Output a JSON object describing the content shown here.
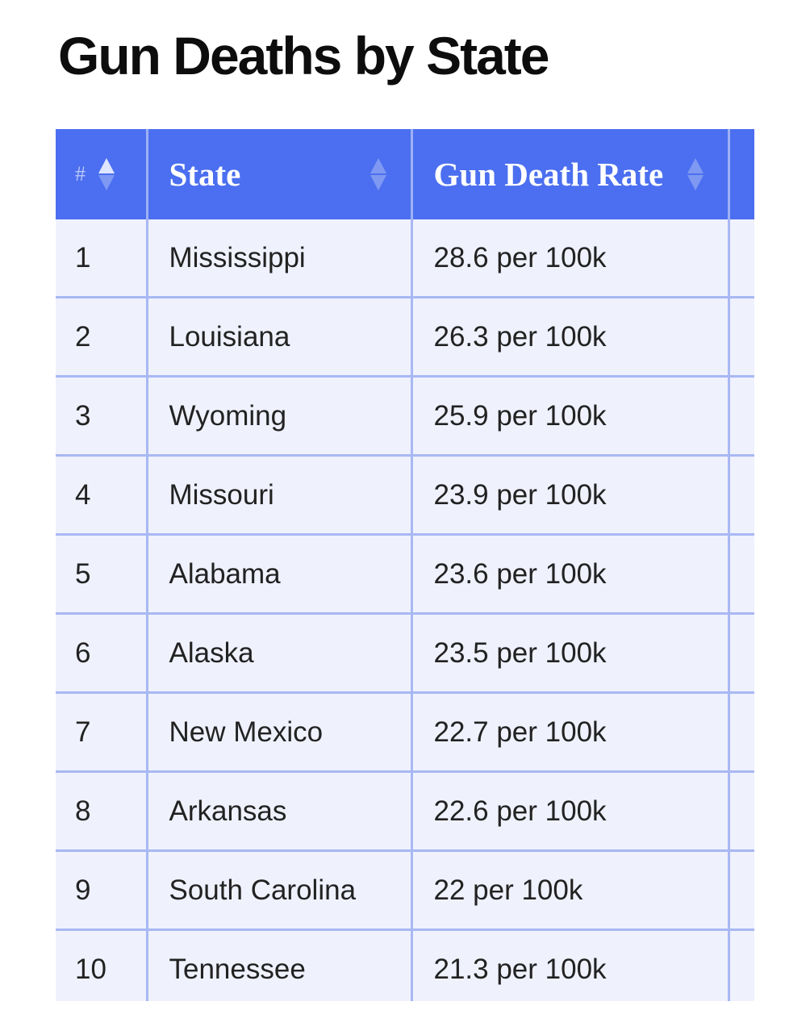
{
  "page": {
    "title": "Gun Deaths by State"
  },
  "table": {
    "headers": {
      "rank": "#",
      "state": "State",
      "rate": "Gun Death Rate"
    },
    "sort_icons": {
      "rank": "sort-ascending-icon",
      "state": "sort-icon",
      "rate": "sort-icon"
    },
    "colors": {
      "header_bg": "#4b6ff0",
      "row_bg": "#eff1fd",
      "grid": "#a8b8f4"
    },
    "rows": [
      {
        "rank": "1",
        "state": "Mississippi",
        "rate": "28.6 per 100k"
      },
      {
        "rank": "2",
        "state": "Louisiana",
        "rate": "26.3 per 100k"
      },
      {
        "rank": "3",
        "state": "Wyoming",
        "rate": "25.9 per 100k"
      },
      {
        "rank": "4",
        "state": "Missouri",
        "rate": "23.9 per 100k"
      },
      {
        "rank": "5",
        "state": "Alabama",
        "rate": "23.6 per 100k"
      },
      {
        "rank": "6",
        "state": "Alaska",
        "rate": "23.5 per 100k"
      },
      {
        "rank": "7",
        "state": "New Mexico",
        "rate": "22.7 per 100k"
      },
      {
        "rank": "8",
        "state": "Arkansas",
        "rate": "22.6 per 100k"
      },
      {
        "rank": "9",
        "state": "South Carolina",
        "rate": "22 per 100k"
      },
      {
        "rank": "10",
        "state": "Tennessee",
        "rate": "21.3 per 100k"
      }
    ]
  }
}
